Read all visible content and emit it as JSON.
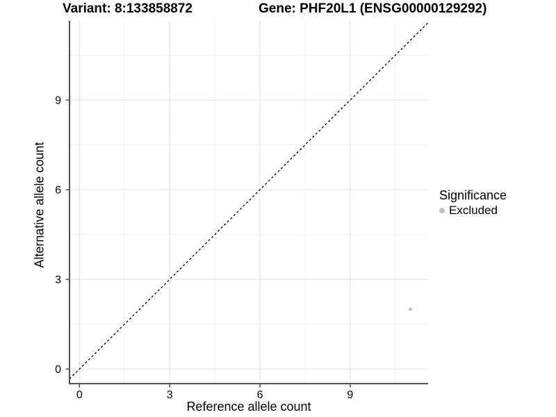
{
  "colors": {
    "background": "#ffffff",
    "grid_major": "#e3e3e3",
    "grid_minor": "#efefef",
    "axis_line": "#3d3d3d",
    "tick": "#3d3d3d",
    "text": "#000000",
    "excluded_point": "#bdbdbd"
  },
  "chart_data": {
    "type": "scatter",
    "title_left": "Variant: 8:133858872",
    "title_right": "Gene: PHF20L1 (ENSG00000129292)",
    "xlabel": "Reference allele count",
    "ylabel": "Alternative allele count",
    "legend_title": "Significance",
    "legend_position": "right",
    "xlim": [
      -0.33,
      11.59
    ],
    "ylim": [
      -0.49,
      11.65
    ],
    "x_ticks": [
      0,
      3,
      6,
      9
    ],
    "y_ticks": [
      0,
      3,
      6,
      9
    ],
    "x_minor_ticks": [
      1.5,
      4.5,
      7.5,
      10.5
    ],
    "y_minor_ticks": [
      1.5,
      4.5,
      7.5,
      10.5
    ],
    "grid": "on",
    "series": [
      {
        "name": "Excluded",
        "color": "#bdbdbd",
        "points": [
          {
            "x": 11,
            "y": 2
          }
        ]
      }
    ],
    "reference_line": {
      "type": "identity",
      "slope": 1,
      "intercept": 0,
      "style": "dashed",
      "color": "#000000"
    }
  }
}
